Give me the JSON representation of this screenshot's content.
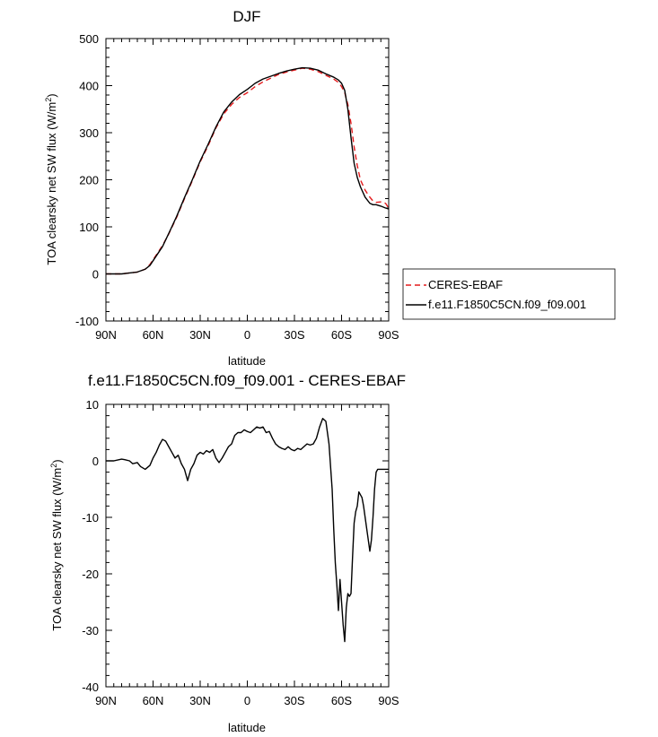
{
  "chart_data": [
    {
      "type": "line",
      "title": "DJF",
      "xlabel": "latitude",
      "ylabel": "TOA clearsky net SW flux (W/m²)",
      "ylabel_main": "TOA clearsky net SW flux (W/m",
      "ylabel_sup": "2",
      "ylabel_end": ")",
      "xlim": [
        90,
        -90
      ],
      "ylim": [
        -100,
        500
      ],
      "xticks": [
        90,
        60,
        30,
        0,
        -30,
        -60,
        -90
      ],
      "xtick_labels": [
        "90N",
        "60N",
        "30N",
        "0",
        "30S",
        "60S",
        "90S"
      ],
      "yticks": [
        -100,
        0,
        100,
        200,
        300,
        400,
        500
      ],
      "ytick_labels": [
        "-100",
        "0",
        "100",
        "200",
        "300",
        "400",
        "500"
      ],
      "legend_position": "right",
      "series": [
        {
          "name": "CERES-EBAF",
          "color": "#e41a1c",
          "dash": "dashed",
          "x": [
            90,
            80,
            75,
            70,
            65,
            62,
            58,
            54,
            50,
            45,
            40,
            35,
            30,
            25,
            20,
            15,
            10,
            5,
            0,
            -5,
            -10,
            -15,
            -20,
            -25,
            -30,
            -35,
            -40,
            -45,
            -50,
            -55,
            -58,
            -60,
            -62,
            -64,
            -66,
            -68,
            -70,
            -72,
            -75,
            -78,
            -80,
            -82,
            -85,
            -88,
            -90
          ],
          "y": [
            0,
            0,
            2,
            4,
            10,
            20,
            40,
            60,
            85,
            120,
            160,
            198,
            238,
            272,
            310,
            340,
            360,
            375,
            385,
            398,
            408,
            416,
            424,
            429,
            433,
            437,
            435,
            430,
            422,
            414,
            407,
            398,
            385,
            360,
            320,
            270,
            230,
            200,
            178,
            163,
            155,
            152,
            153,
            150,
            140
          ]
        },
        {
          "name": "f.e11.F1850C5CN.f09_f09.001",
          "color": "#000000",
          "dash": "solid",
          "x": [
            90,
            80,
            75,
            70,
            65,
            62,
            58,
            54,
            50,
            45,
            40,
            35,
            30,
            25,
            20,
            15,
            10,
            5,
            0,
            -5,
            -10,
            -15,
            -20,
            -25,
            -30,
            -35,
            -40,
            -45,
            -50,
            -55,
            -58,
            -60,
            -62,
            -64,
            -66,
            -68,
            -70,
            -72,
            -75,
            -78,
            -80,
            -82,
            -85,
            -88,
            -90
          ],
          "y": [
            0,
            0,
            2,
            4,
            10,
            18,
            38,
            58,
            86,
            122,
            162,
            200,
            240,
            275,
            312,
            344,
            365,
            381,
            392,
            405,
            414,
            420,
            426,
            431,
            435,
            438,
            437,
            433,
            425,
            418,
            412,
            405,
            390,
            350,
            290,
            235,
            205,
            185,
            163,
            150,
            147,
            147,
            144,
            140,
            138
          ]
        }
      ]
    },
    {
      "type": "line",
      "title": "f.e11.F1850C5CN.f09_f09.001 - CERES-EBAF",
      "xlabel": "latitude",
      "ylabel": "TOA clearsky net SW flux (W/m²)",
      "ylabel_main": "TOA clearsky net SW flux (W/m",
      "ylabel_sup": "2",
      "ylabel_end": ")",
      "xlim": [
        90,
        -90
      ],
      "ylim": [
        -40,
        10
      ],
      "xticks": [
        90,
        60,
        30,
        0,
        -30,
        -60,
        -90
      ],
      "xtick_labels": [
        "90N",
        "60N",
        "30N",
        "0",
        "30S",
        "60S",
        "90S"
      ],
      "yticks": [
        -40,
        -30,
        -20,
        -10,
        0,
        10
      ],
      "ytick_labels": [
        "-40",
        "-30",
        "-20",
        "-10",
        "0",
        "10"
      ],
      "series": [
        {
          "name": "",
          "color": "#000000",
          "dash": "solid",
          "x": [
            90,
            85,
            80,
            78,
            75,
            73,
            70,
            68,
            65,
            62,
            60,
            58,
            56,
            54,
            52,
            50,
            48,
            46,
            44,
            42,
            40,
            38,
            36,
            34,
            32,
            30,
            28,
            26,
            24,
            22,
            20,
            18,
            16,
            14,
            12,
            10,
            8,
            6,
            4,
            2,
            0,
            -2,
            -4,
            -6,
            -8,
            -10,
            -12,
            -14,
            -16,
            -18,
            -20,
            -22,
            -24,
            -26,
            -28,
            -30,
            -32,
            -34,
            -36,
            -38,
            -40,
            -42,
            -44,
            -46,
            -48,
            -50,
            -52,
            -54,
            -55,
            -56,
            -57,
            -58,
            -59,
            -60,
            -61,
            -62,
            -63,
            -64,
            -65,
            -66,
            -67,
            -68,
            -69,
            -70,
            -71,
            -72,
            -73,
            -74,
            -75,
            -76,
            -77,
            -78,
            -79,
            -80,
            -81,
            -82,
            -83,
            -84,
            -85,
            -86,
            -87,
            -88,
            -89,
            -90
          ],
          "y": [
            0,
            0,
            0.3,
            0.2,
            0,
            -0.5,
            -0.3,
            -1.0,
            -1.5,
            -0.8,
            0.5,
            1.5,
            2.8,
            3.8,
            3.5,
            2.5,
            1.5,
            0.5,
            1.0,
            -0.5,
            -1.5,
            -3.5,
            -1.5,
            -0.5,
            1.0,
            1.5,
            1.2,
            1.8,
            1.5,
            2.0,
            0.5,
            -0.3,
            0.5,
            1.5,
            2.5,
            3.0,
            4.5,
            5.0,
            5.0,
            5.5,
            5.2,
            5.0,
            5.5,
            6.0,
            5.8,
            6.0,
            5.0,
            5.2,
            4.0,
            3.0,
            2.5,
            2.2,
            2.0,
            2.5,
            2.0,
            1.8,
            2.2,
            2.0,
            2.5,
            3.0,
            2.8,
            3.0,
            4.0,
            6.0,
            7.5,
            7.0,
            3.0,
            -5.0,
            -12.0,
            -18.0,
            -22.0,
            -26.5,
            -21.0,
            -25.0,
            -29.0,
            -32.0,
            -26.0,
            -23.5,
            -24.0,
            -23.5,
            -17.0,
            -11.0,
            -9.0,
            -8.0,
            -5.5,
            -6.0,
            -6.5,
            -8.0,
            -10.0,
            -12.0,
            -14.0,
            -16.0,
            -14.0,
            -10.0,
            -5.0,
            -2.0,
            -1.5,
            -1.5,
            -1.5,
            -1.5,
            -1.5,
            -1.5,
            -1.5,
            -1.5
          ]
        }
      ]
    }
  ]
}
